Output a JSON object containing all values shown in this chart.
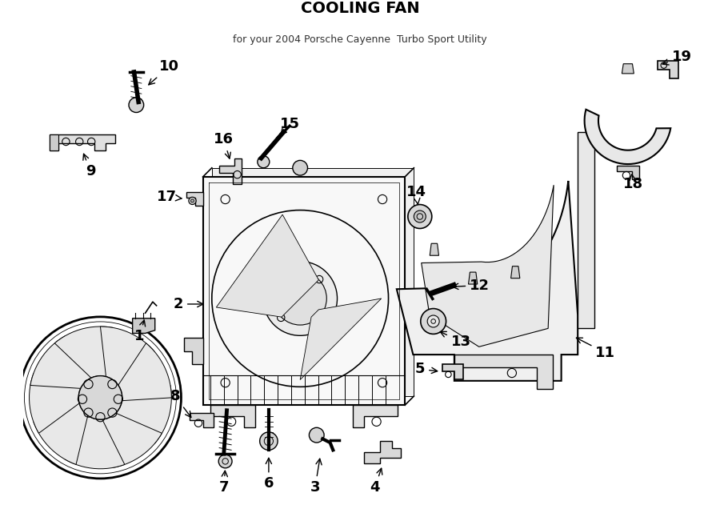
{
  "title": "COOLING FAN",
  "subtitle": "for your 2004 Porsche Cayenne  Turbo Sport Utility",
  "bg_color": "#ffffff",
  "line_color": "#000000",
  "fig_w": 9.0,
  "fig_h": 6.61,
  "dpi": 100
}
